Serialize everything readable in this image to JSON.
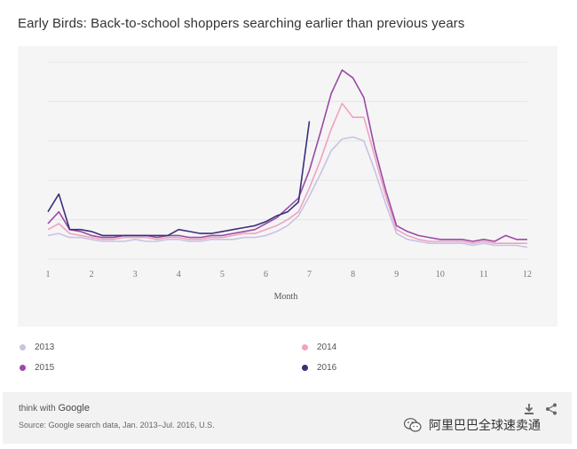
{
  "title": "Early Birds: Back-to-school shoppers searching earlier than previous years",
  "chart_data": {
    "type": "line",
    "xlabel": "Month",
    "ylabel": "",
    "xlim": [
      1,
      12
    ],
    "ylim": [
      0,
      100
    ],
    "grid": true,
    "x_ticks": [
      1,
      2,
      3,
      4,
      5,
      6,
      7,
      8,
      9,
      10,
      11,
      12
    ],
    "x_tick_labels": [
      "1",
      "2",
      "3",
      "4",
      "5",
      "6",
      "7",
      "8",
      "9",
      "10",
      "11",
      "12"
    ],
    "legend_position": "bottom",
    "series": [
      {
        "name": "2013",
        "color": "#c7c3e3",
        "x": [
          1,
          1.25,
          1.5,
          1.75,
          2,
          2.25,
          2.5,
          2.75,
          3,
          3.25,
          3.5,
          3.75,
          4,
          4.25,
          4.5,
          4.75,
          5,
          5.25,
          5.5,
          5.75,
          6,
          6.25,
          6.5,
          6.75,
          7,
          7.25,
          7.5,
          7.75,
          8,
          8.25,
          8.5,
          8.75,
          9,
          9.25,
          9.5,
          9.75,
          10,
          10.25,
          10.5,
          10.75,
          11,
          11.25,
          11.5,
          11.75,
          12
        ],
        "values": [
          12,
          13,
          11,
          11,
          10,
          9,
          9,
          9,
          10,
          9,
          9,
          10,
          10,
          9,
          9,
          10,
          10,
          10,
          11,
          11,
          12,
          14,
          17,
          22,
          32,
          43,
          55,
          61,
          62,
          60,
          45,
          28,
          13,
          10,
          9,
          8,
          8,
          8,
          8,
          7,
          8,
          7,
          7,
          7,
          6
        ]
      },
      {
        "name": "2014",
        "color": "#efa3c1",
        "x": [
          1,
          1.25,
          1.5,
          1.75,
          2,
          2.25,
          2.5,
          2.75,
          3,
          3.25,
          3.5,
          3.75,
          4,
          4.25,
          4.5,
          4.75,
          5,
          5.25,
          5.5,
          5.75,
          6,
          6.25,
          6.5,
          6.75,
          7,
          7.25,
          7.5,
          7.75,
          8,
          8.25,
          8.5,
          8.75,
          9,
          9.25,
          9.5,
          9.75,
          10,
          10.25,
          10.5,
          10.75,
          11,
          11.25,
          11.5,
          11.75,
          12
        ],
        "values": [
          15,
          18,
          13,
          12,
          11,
          10,
          10,
          11,
          11,
          11,
          10,
          11,
          11,
          10,
          10,
          11,
          11,
          12,
          13,
          13,
          15,
          17,
          20,
          24,
          36,
          50,
          66,
          79,
          72,
          72,
          52,
          32,
          15,
          12,
          10,
          9,
          9,
          9,
          9,
          8,
          9,
          8,
          8,
          8,
          8
        ]
      },
      {
        "name": "2015",
        "color": "#9a4aa5",
        "x": [
          1,
          1.25,
          1.5,
          1.75,
          2,
          2.25,
          2.5,
          2.75,
          3,
          3.25,
          3.5,
          3.75,
          4,
          4.25,
          4.5,
          4.75,
          5,
          5.25,
          5.5,
          5.75,
          6,
          6.25,
          6.5,
          6.75,
          7,
          7.25,
          7.5,
          7.75,
          8,
          8.25,
          8.5,
          8.75,
          9,
          9.25,
          9.5,
          9.75,
          10,
          10.25,
          10.5,
          10.75,
          11,
          11.25,
          11.5,
          11.75,
          12
        ],
        "values": [
          18,
          24,
          15,
          14,
          12,
          11,
          11,
          12,
          12,
          12,
          11,
          12,
          12,
          11,
          11,
          12,
          12,
          13,
          14,
          15,
          18,
          21,
          26,
          31,
          45,
          64,
          84,
          96,
          92,
          82,
          56,
          35,
          17,
          14,
          12,
          11,
          10,
          10,
          10,
          9,
          10,
          9,
          12,
          10,
          10
        ]
      },
      {
        "name": "2016",
        "color": "#3a2f7a",
        "x": [
          1,
          1.25,
          1.5,
          1.75,
          2,
          2.25,
          2.5,
          2.75,
          3,
          3.25,
          3.5,
          3.75,
          4,
          4.25,
          4.5,
          4.75,
          5,
          5.25,
          5.5,
          5.75,
          6,
          6.25,
          6.5,
          6.75,
          7
        ],
        "values": [
          24,
          33,
          15,
          15,
          14,
          12,
          12,
          12,
          12,
          12,
          12,
          12,
          15,
          14,
          13,
          13,
          14,
          15,
          16,
          17,
          19,
          22,
          24,
          29,
          70
        ]
      }
    ]
  },
  "legend": [
    {
      "label": "2013",
      "color": "#c7c3e3"
    },
    {
      "label": "2014",
      "color": "#efa3c1"
    },
    {
      "label": "2015",
      "color": "#9a4aa5"
    },
    {
      "label": "2016",
      "color": "#3a2f7a"
    }
  ],
  "footer": {
    "brand_prefix": "think with",
    "brand_name": "Google",
    "source": "Source: Google search data, Jan. 2013–Jul. 2016, U.S.",
    "download_icon": "download-icon",
    "share_icon": "share-icon"
  },
  "watermark": {
    "icon": "wechat-icon",
    "text": "阿里巴巴全球速卖通"
  }
}
